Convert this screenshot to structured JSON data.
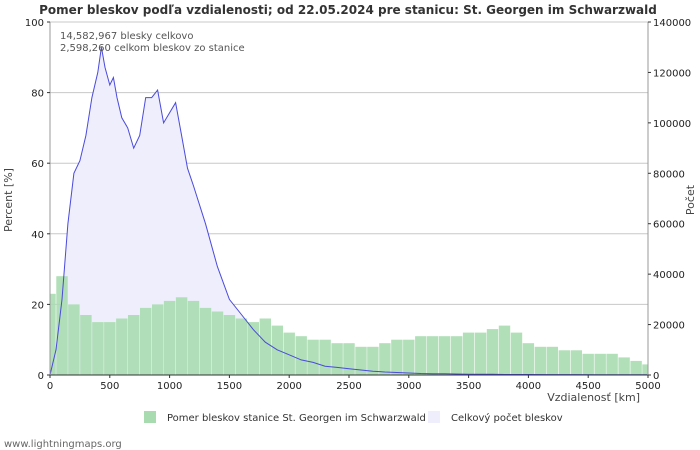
{
  "chart_data": {
    "type": "bar+area",
    "title": "Pomer bleskov podľa vzdialenosti; od 22.05.2024 pre stanicu: St. Georgen im Schwarzwald",
    "xlabel": "Vzdialenosť   [km]",
    "ylabel_left": "Percent   [%]",
    "ylabel_right": "Počet",
    "xlim": [
      0,
      5000
    ],
    "ylim_left": [
      0,
      100
    ],
    "ylim_right": [
      0,
      140000
    ],
    "x_ticks": [
      "0",
      "500",
      "1000",
      "1500",
      "2000",
      "2500",
      "3000",
      "3500",
      "4000",
      "4500",
      "5000"
    ],
    "y_left_ticks": [
      "0",
      "20",
      "40",
      "60",
      "80",
      "100"
    ],
    "y_right_ticks": [
      "0",
      "20000",
      "40000",
      "60000",
      "80000",
      "100000",
      "120000",
      "140000"
    ],
    "annotations": [
      "14,582,967 blesky celkovo",
      "2,598,260 celkom bleskov zo stanice"
    ],
    "series": [
      {
        "name": "Pomer bleskov stanice St. Georgen im Schwarzwald",
        "kind": "bar",
        "axis": "left",
        "color": "#a8dcb0",
        "x": [
          0,
          100,
          200,
          300,
          400,
          500,
          600,
          700,
          800,
          900,
          1000,
          1100,
          1200,
          1300,
          1400,
          1500,
          1600,
          1700,
          1800,
          1900,
          2000,
          2100,
          2200,
          2300,
          2400,
          2500,
          2600,
          2700,
          2800,
          2900,
          3000,
          3100,
          3200,
          3300,
          3400,
          3500,
          3600,
          3700,
          3800,
          3900,
          4000,
          4100,
          4200,
          4300,
          4400,
          4500,
          4600,
          4700,
          4800,
          4900,
          5000
        ],
        "values": [
          23,
          28,
          20,
          17,
          15,
          15,
          16,
          17,
          19,
          20,
          21,
          22,
          21,
          19,
          18,
          17,
          16,
          15,
          16,
          14,
          12,
          11,
          10,
          10,
          9,
          9,
          8,
          8,
          9,
          10,
          10,
          11,
          11,
          11,
          11,
          12,
          12,
          13,
          14,
          12,
          9,
          8,
          8,
          7,
          7,
          6,
          6,
          6,
          5,
          4,
          3
        ]
      },
      {
        "name": "Celkový počet bleskov",
        "kind": "area",
        "axis": "right",
        "color": "#eeeefc",
        "line_color": "#4a4adc",
        "x": [
          0,
          50,
          100,
          150,
          200,
          250,
          300,
          350,
          400,
          430,
          460,
          500,
          530,
          560,
          600,
          650,
          700,
          750,
          800,
          850,
          900,
          950,
          1000,
          1050,
          1100,
          1150,
          1200,
          1300,
          1400,
          1500,
          1600,
          1700,
          1800,
          1900,
          2000,
          2100,
          2200,
          2300,
          2400,
          2500,
          2600,
          2700,
          2800,
          2900,
          3000,
          3100,
          3200,
          3300,
          3400,
          3500,
          3600,
          3700,
          3800,
          3900,
          4000,
          4200,
          4400,
          4600,
          4800,
          5000
        ],
        "values": [
          0,
          10000,
          30000,
          60000,
          80000,
          85000,
          95000,
          110000,
          120000,
          130000,
          122000,
          115000,
          118000,
          110000,
          102000,
          98000,
          90000,
          95000,
          110000,
          110000,
          113000,
          100000,
          104000,
          108000,
          95000,
          82000,
          75000,
          60000,
          43000,
          30000,
          24000,
          18000,
          13000,
          10000,
          8000,
          6000,
          5000,
          3500,
          3000,
          2500,
          2000,
          1500,
          1200,
          1000,
          800,
          600,
          500,
          500,
          400,
          300,
          300,
          300,
          200,
          200,
          200,
          150,
          150,
          100,
          100,
          100
        ]
      }
    ],
    "legend_position": "bottom-center"
  },
  "footer": "www.lightningmaps.org"
}
